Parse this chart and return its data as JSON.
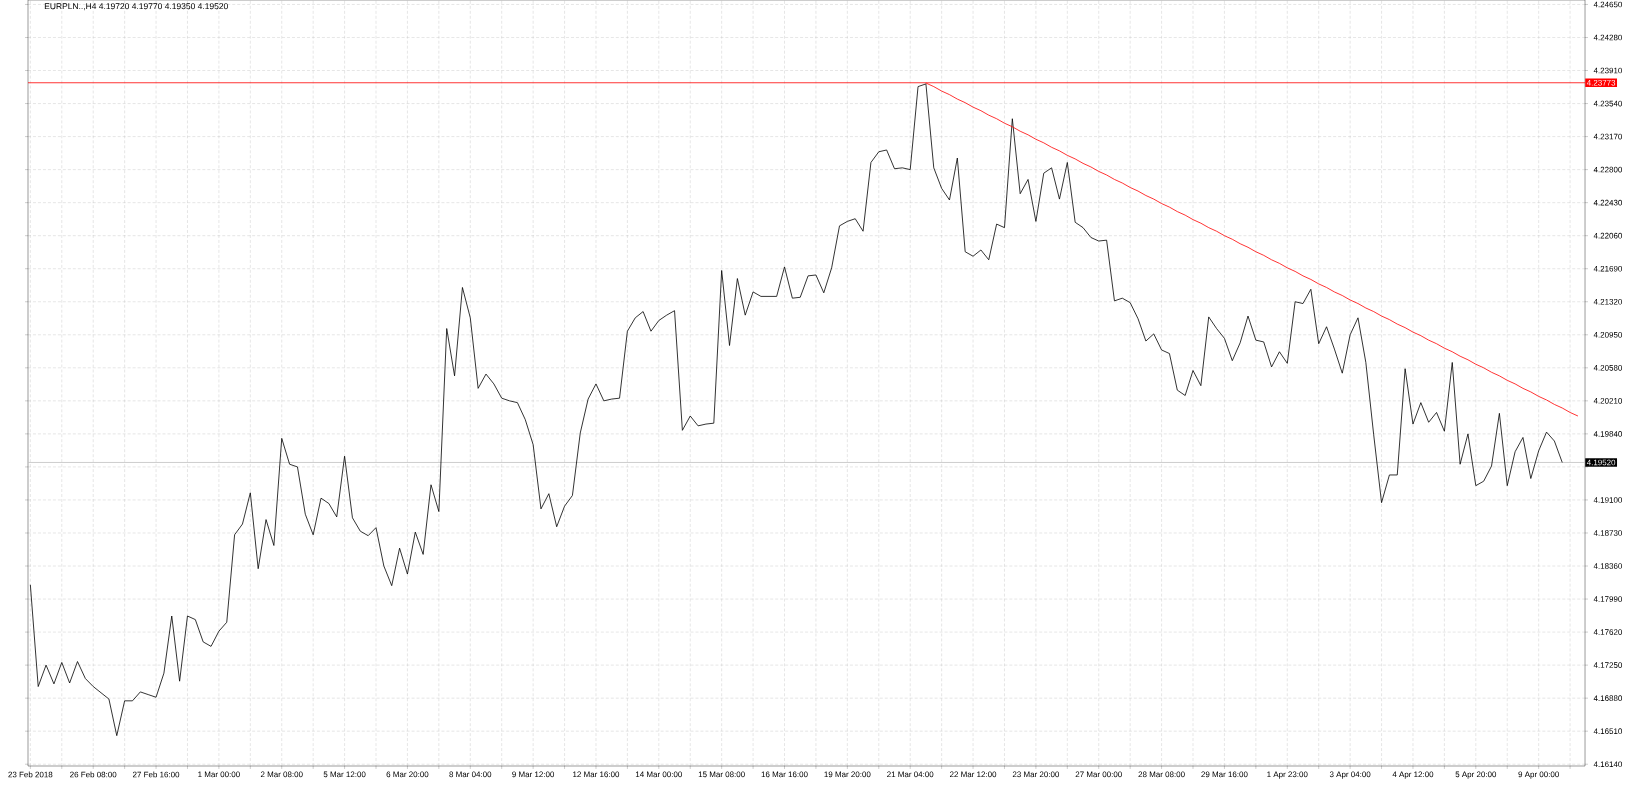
{
  "chart_data": {
    "type": "line",
    "title": "EURPLN..,H4  4.19720 4.19770 4.19350 4.19520",
    "ylim": [
      4.1612,
      4.247
    ],
    "grid": true,
    "categories": [
      "23 Feb 2018",
      null,
      null,
      null,
      null,
      null,
      null,
      null,
      "26 Feb 08:00",
      null,
      null,
      null,
      null,
      null,
      null,
      null,
      "27 Feb 16:00",
      null,
      null,
      null,
      null,
      null,
      null,
      null,
      "1 Mar 00:00",
      null,
      null,
      null,
      null,
      null,
      null,
      null,
      "2 Mar 08:00",
      null,
      null,
      null,
      null,
      null,
      null,
      null,
      "5 Mar 12:00",
      null,
      null,
      null,
      null,
      null,
      null,
      null,
      "6 Mar 20:00",
      null,
      null,
      null,
      null,
      null,
      null,
      null,
      "8 Mar 04:00",
      null,
      null,
      null,
      null,
      null,
      null,
      null,
      "9 Mar 12:00",
      null,
      null,
      null,
      null,
      null,
      null,
      null,
      "12 Mar 16:00",
      null,
      null,
      null,
      null,
      null,
      null,
      null,
      "14 Mar 00:00",
      null,
      null,
      null,
      null,
      null,
      null,
      null,
      "15 Mar 08:00",
      null,
      null,
      null,
      null,
      null,
      null,
      null,
      "16 Mar 16:00",
      null,
      null,
      null,
      null,
      null,
      null,
      null,
      "19 Mar 20:00",
      null,
      null,
      null,
      null,
      null,
      null,
      null,
      "21 Mar 04:00",
      null,
      null,
      null,
      null,
      null,
      null,
      null,
      "22 Mar 12:00",
      null,
      null,
      null,
      null,
      null,
      null,
      null,
      "23 Mar 20:00",
      null,
      null,
      null,
      null,
      null,
      null,
      null,
      "27 Mar 00:00",
      null,
      null,
      null,
      null,
      null,
      null,
      null,
      "28 Mar 08:00",
      null,
      null,
      null,
      null,
      null,
      null,
      null,
      "29 Mar 16:00",
      null,
      null,
      null,
      null,
      null,
      null,
      null,
      "1 Apr 23:00",
      null,
      null,
      null,
      null,
      null,
      null,
      null,
      "3 Apr 04:00",
      null,
      null,
      null,
      null,
      null,
      null,
      null,
      "4 Apr 12:00",
      null,
      null,
      null,
      null,
      null,
      null,
      null,
      "5 Apr 20:00",
      null,
      null,
      null,
      null,
      null,
      null,
      null,
      "9 Apr 00:00",
      null,
      null,
      null,
      null,
      null
    ],
    "yticks": [
      {
        "value": 4.1614,
        "label": "4.16140"
      },
      {
        "value": 4.1651,
        "label": "4.16510"
      },
      {
        "value": 4.1688,
        "label": "4.16880"
      },
      {
        "value": 4.1725,
        "label": "4.17250"
      },
      {
        "value": 4.1762,
        "label": "4.17620"
      },
      {
        "value": 4.1799,
        "label": "4.17990"
      },
      {
        "value": 4.1836,
        "label": "4.18360"
      },
      {
        "value": 4.1873,
        "label": "4.18730"
      },
      {
        "value": 4.191,
        "label": "4.19100"
      },
      {
        "value": 4.1947,
        "label": null
      },
      {
        "value": 4.1984,
        "label": "4.19840"
      },
      {
        "value": 4.2021,
        "label": "4.20210"
      },
      {
        "value": 4.2058,
        "label": "4.20580"
      },
      {
        "value": 4.2095,
        "label": "4.20950"
      },
      {
        "value": 4.2132,
        "label": "4.21320"
      },
      {
        "value": 4.2169,
        "label": "4.21690"
      },
      {
        "value": 4.2206,
        "label": "4.22060"
      },
      {
        "value": 4.2243,
        "label": "4.22430"
      },
      {
        "value": 4.228,
        "label": "4.22800"
      },
      {
        "value": 4.2317,
        "label": "4.23170"
      },
      {
        "value": 4.2354,
        "label": "4.23540"
      },
      {
        "value": 4.2391,
        "label": "4.23910"
      },
      {
        "value": 4.2428,
        "label": "4.24280"
      },
      {
        "value": 4.2465,
        "label": "4.24650"
      }
    ],
    "ref_lines": [
      {
        "axis": "y",
        "value": 4.23773,
        "label": "4.23773",
        "color": "#ff0000"
      },
      {
        "axis": "y",
        "value": 4.1952,
        "label": "4.19520",
        "color": "#c0c0c0"
      }
    ],
    "series": [
      {
        "color": "#000000",
        "values": [
          4.1815,
          4.1701,
          4.1725,
          4.1704,
          4.1728,
          4.1705,
          4.1729,
          4.171,
          4.1701,
          4.1694,
          4.1687,
          4.1646,
          4.1685,
          4.1685,
          4.1695,
          4.1692,
          4.1689,
          4.1716,
          4.178,
          4.1707,
          4.178,
          4.1776,
          4.1751,
          4.1746,
          4.1763,
          4.1773,
          4.1871,
          4.1883,
          4.1918,
          4.1833,
          4.1888,
          4.1859,
          4.1979,
          4.195,
          4.1947,
          4.1894,
          4.1871,
          4.1912,
          4.1906,
          4.1891,
          4.1959,
          4.189,
          4.1875,
          4.187,
          4.1879,
          4.1836,
          4.1814,
          4.1856,
          4.1827,
          4.1874,
          4.1849,
          4.1927,
          4.1897,
          4.2102,
          4.2049,
          4.2148,
          4.2114,
          4.2035,
          4.2051,
          4.204,
          4.2024,
          4.2021,
          4.2019,
          4.2,
          4.1972,
          4.19,
          4.1917,
          4.188,
          4.1903,
          4.1915,
          4.1985,
          4.2023,
          4.204,
          4.2021,
          4.2023,
          4.2024,
          4.2099,
          4.2114,
          4.2121,
          4.2099,
          4.2111,
          4.2117,
          4.2122,
          4.1988,
          4.2004,
          4.1993,
          4.1995,
          4.1996,
          4.2167,
          4.2083,
          4.2158,
          4.2117,
          4.2143,
          4.2138,
          4.2138,
          4.2138,
          4.2171,
          4.2136,
          4.2137,
          4.2161,
          4.2162,
          4.2142,
          4.217,
          4.2217,
          4.2222,
          4.2225,
          4.2211,
          4.2288,
          4.23,
          4.2302,
          4.2281,
          4.2282,
          4.228,
          4.2373,
          4.2376,
          4.2282,
          4.2259,
          4.2246,
          4.2293,
          4.2188,
          4.2183,
          4.219,
          4.2179,
          4.2219,
          4.2215,
          4.2337,
          4.2253,
          4.2269,
          4.2222,
          4.2276,
          4.2282,
          4.2247,
          4.2288,
          4.2221,
          4.2215,
          4.2204,
          4.22,
          4.2201,
          4.2133,
          4.2136,
          4.2131,
          4.2113,
          4.2088,
          4.2096,
          4.2078,
          4.2074,
          4.2033,
          4.2027,
          4.2055,
          4.2038,
          4.2115,
          4.2102,
          4.2091,
          4.2066,
          4.2086,
          4.2116,
          4.2089,
          4.2087,
          4.2059,
          4.2076,
          4.2063,
          4.2132,
          4.213,
          4.2146,
          4.2085,
          4.2104,
          4.2079,
          4.2052,
          4.2095,
          4.2114,
          4.2064,
          4.1983,
          4.1907,
          4.1938,
          4.1938,
          4.2057,
          4.1995,
          4.2019,
          4.1997,
          4.2008,
          4.1987,
          4.2064,
          4.195,
          4.1984,
          4.1926,
          4.1931,
          4.1948,
          4.2007,
          4.1926,
          4.1964,
          4.198,
          4.1934,
          4.1965,
          4.1986,
          4.1976,
          4.1952,
          null,
          null
        ]
      },
      {
        "type": "line",
        "color": "#ff0000",
        "values": [
          null,
          null,
          null,
          null,
          null,
          null,
          null,
          null,
          null,
          null,
          null,
          null,
          null,
          null,
          null,
          null,
          null,
          null,
          null,
          null,
          null,
          null,
          null,
          null,
          null,
          null,
          null,
          null,
          null,
          null,
          null,
          null,
          null,
          null,
          null,
          null,
          null,
          null,
          null,
          null,
          null,
          null,
          null,
          null,
          null,
          null,
          null,
          null,
          null,
          null,
          null,
          null,
          null,
          null,
          null,
          null,
          null,
          null,
          null,
          null,
          null,
          null,
          null,
          null,
          null,
          null,
          null,
          null,
          null,
          null,
          null,
          null,
          null,
          null,
          null,
          null,
          null,
          null,
          null,
          null,
          null,
          null,
          null,
          null,
          null,
          null,
          null,
          null,
          null,
          null,
          null,
          null,
          null,
          null,
          null,
          null,
          null,
          null,
          null,
          null,
          null,
          null,
          null,
          null,
          null,
          null,
          null,
          null,
          null,
          null,
          null,
          null,
          null,
          null,
          4.2377,
          4.2373,
          4.2368,
          4.2364,
          4.2359,
          4.2355,
          4.235,
          4.2346,
          4.2341,
          4.2337,
          4.2332,
          4.2328,
          4.2323,
          4.2319,
          4.2314,
          4.231,
          4.2305,
          4.2301,
          4.2296,
          4.2292,
          4.2287,
          4.2283,
          4.2278,
          4.2274,
          4.2269,
          4.2265,
          4.226,
          4.2256,
          4.2251,
          4.2247,
          4.2242,
          4.2238,
          4.2233,
          4.2229,
          4.2224,
          4.222,
          4.2215,
          4.2211,
          4.2206,
          4.2202,
          4.2197,
          4.2193,
          4.2188,
          4.2184,
          4.2179,
          4.2175,
          4.217,
          4.2166,
          4.2161,
          4.2157,
          4.2152,
          4.2148,
          4.2143,
          4.2139,
          4.2134,
          4.213,
          4.2125,
          4.2121,
          4.2116,
          4.2112,
          4.2107,
          4.2103,
          4.2098,
          4.2094,
          4.2089,
          4.2085,
          4.208,
          4.2076,
          4.2071,
          4.2067,
          4.2062,
          4.2058,
          4.2053,
          4.2049,
          4.2044,
          4.204,
          4.2035,
          4.2031,
          4.2026,
          4.2022,
          4.2017,
          4.2013,
          4.2008,
          4.2004
        ]
      }
    ]
  }
}
